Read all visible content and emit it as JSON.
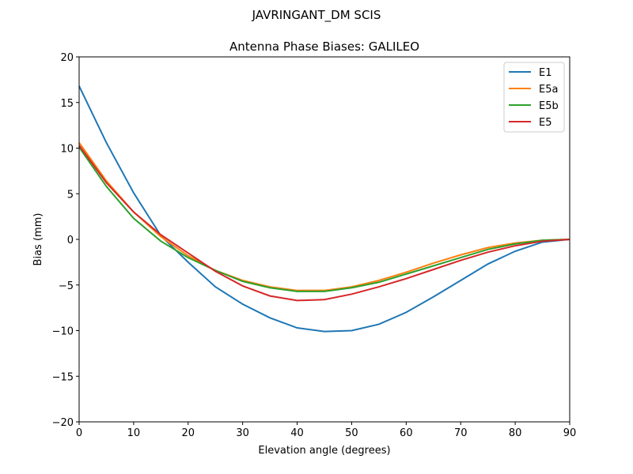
{
  "suptitle": "JAVRINGANT_DM   SCIS",
  "chart_data": {
    "type": "line",
    "title": "Antenna Phase Biases: GALILEO",
    "xlabel": "Elevation angle (degrees)",
    "ylabel": "Bias (mm)",
    "xlim": [
      0,
      90
    ],
    "ylim": [
      -20,
      20
    ],
    "xticks": [
      0,
      10,
      20,
      30,
      40,
      50,
      60,
      70,
      80,
      90
    ],
    "yticks": [
      -20,
      -15,
      -10,
      -5,
      0,
      5,
      10,
      15,
      20
    ],
    "grid": false,
    "legend_position": "top-right",
    "x": [
      0,
      5,
      10,
      15,
      20,
      25,
      30,
      35,
      40,
      45,
      50,
      55,
      60,
      65,
      70,
      75,
      80,
      85,
      90
    ],
    "series": [
      {
        "name": "E1",
        "color": "#1f77b4",
        "values": [
          16.8,
          10.6,
          5.1,
          0.4,
          -2.5,
          -5.2,
          -7.1,
          -8.6,
          -9.7,
          -10.1,
          -10.0,
          -9.3,
          -8.0,
          -6.3,
          -4.5,
          -2.7,
          -1.3,
          -0.3,
          0
        ]
      },
      {
        "name": "E5a",
        "color": "#ff7f0e",
        "values": [
          10.6,
          6.4,
          3.0,
          0.3,
          -1.8,
          -3.4,
          -4.5,
          -5.2,
          -5.6,
          -5.6,
          -5.2,
          -4.5,
          -3.6,
          -2.6,
          -1.7,
          -0.9,
          -0.4,
          -0.1,
          0
        ]
      },
      {
        "name": "E5b",
        "color": "#2ca02c",
        "values": [
          10.1,
          5.8,
          2.3,
          -0.2,
          -2.0,
          -3.4,
          -4.6,
          -5.3,
          -5.7,
          -5.7,
          -5.3,
          -4.7,
          -3.8,
          -2.9,
          -2.0,
          -1.1,
          -0.5,
          -0.1,
          0
        ]
      },
      {
        "name": "E5",
        "color": "#d62728",
        "values": [
          10.3,
          6.2,
          3.0,
          0.5,
          -1.5,
          -3.5,
          -5.1,
          -6.2,
          -6.7,
          -6.6,
          -6.0,
          -5.2,
          -4.3,
          -3.3,
          -2.3,
          -1.4,
          -0.7,
          -0.2,
          0
        ]
      }
    ]
  }
}
